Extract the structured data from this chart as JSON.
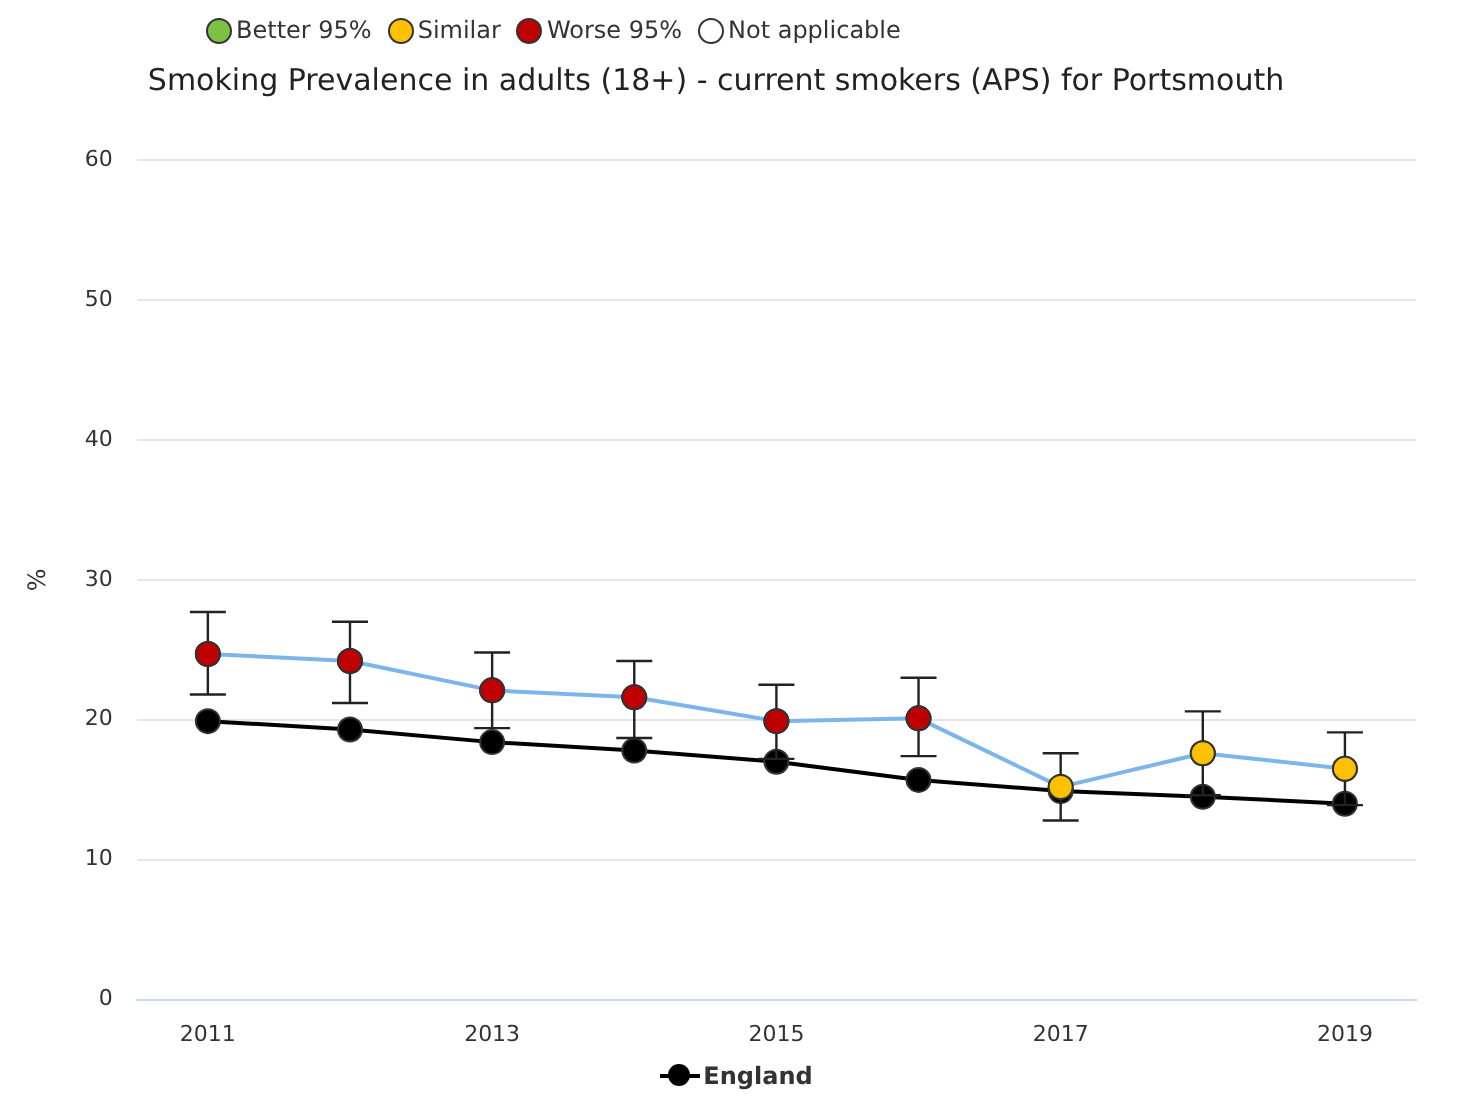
{
  "chart_data": {
    "type": "line",
    "title": "Smoking Prevalence in adults (18+) - current smokers (APS) for Portsmouth",
    "ylabel": "%",
    "categories": [
      "2011",
      null,
      "2013",
      null,
      "2015",
      null,
      "2017",
      null,
      "2019"
    ],
    "ylim": [
      0,
      60
    ],
    "yticks": [
      0,
      10,
      20,
      30,
      40,
      50,
      60
    ],
    "grid": "y",
    "annotations": [
      "Better 95%",
      "Similar",
      "Worse 95%",
      "Not applicable"
    ],
    "legend": "bottom",
    "marker": "circle",
    "series": [
      {
        "color": "#7cb5ec",
        "colors": [
          "#c00000",
          "#c00000",
          "#c00000",
          "#c00000",
          "#c00000",
          "#c00000",
          "#ffc000",
          "#ffc000",
          "#ffc000"
        ],
        "values": [
          24.7,
          24.2,
          22.1,
          21.6,
          19.9,
          20.1,
          15.2,
          17.6,
          16.5
        ],
        "errors": [
          [
            21.8,
            27.7
          ],
          [
            21.2,
            27.0
          ],
          [
            19.4,
            24.8
          ],
          [
            18.7,
            24.2
          ],
          [
            17.2,
            22.5
          ],
          [
            17.4,
            23.0
          ],
          [
            12.8,
            17.6
          ],
          [
            14.6,
            20.6
          ],
          [
            13.9,
            19.1
          ]
        ]
      },
      {
        "name": "England",
        "color": "#000000",
        "values": [
          19.9,
          19.3,
          18.4,
          17.8,
          17.0,
          15.7,
          14.9,
          14.5,
          14.0
        ]
      }
    ]
  }
}
